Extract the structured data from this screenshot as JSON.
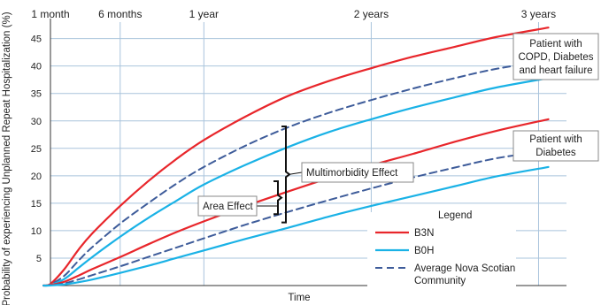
{
  "chart_data": {
    "type": "line",
    "title": "",
    "xlabel": "Time",
    "ylabel": "Probability of experiencing Unplanned Repeat Hospitalization (%)",
    "xunit": "months",
    "xlim": [
      1,
      38
    ],
    "ylim": [
      0,
      48
    ],
    "yticks": [
      5,
      10,
      15,
      20,
      25,
      30,
      35,
      40,
      45
    ],
    "grid": true,
    "time_ticks": [
      {
        "label": "1 month",
        "x": 1
      },
      {
        "label": "6 months",
        "x": 6
      },
      {
        "label": "1 year",
        "x": 12
      },
      {
        "label": "2 years",
        "x": 24
      },
      {
        "label": "3 years",
        "x": 36
      }
    ],
    "colors": {
      "B3N": "#e8262b",
      "B0H": "#1ab2e6",
      "Average": "#3e5c9a",
      "grid": "#a9c4dc"
    },
    "series": [
      {
        "name": "B3N",
        "group": "COPD, Diabetes and heart failure",
        "style": "solid",
        "color": "#e8262b",
        "x": [
          0.5,
          1,
          2,
          3,
          4,
          6,
          8,
          10,
          12,
          15,
          18,
          21,
          24,
          27,
          30,
          33,
          36.7
        ],
        "y": [
          0,
          0.3,
          3,
          6.5,
          9.5,
          14.5,
          19,
          23,
          26.5,
          30.8,
          34.5,
          37.3,
          39.6,
          41.7,
          43.5,
          45.3,
          47
        ]
      },
      {
        "name": "Average Nova Scotian Community",
        "group": "COPD, Diabetes and heart failure",
        "style": "dashed",
        "color": "#3e5c9a",
        "x": [
          0.5,
          1,
          2,
          3,
          4,
          6,
          8,
          10,
          12,
          15,
          18,
          21,
          24,
          27,
          30,
          33,
          36.7
        ],
        "y": [
          0,
          0.2,
          1.8,
          4.5,
          7,
          11.3,
          15,
          18.5,
          21.6,
          25.5,
          28.8,
          31.5,
          33.8,
          35.9,
          37.8,
          39.5,
          41
        ]
      },
      {
        "name": "B0H",
        "group": "COPD, Diabetes and heart failure",
        "style": "solid",
        "color": "#1ab2e6",
        "x": [
          0.5,
          1,
          2,
          3,
          4,
          6,
          8,
          10,
          12,
          15,
          18,
          21,
          24,
          27,
          30,
          33,
          36.7
        ],
        "y": [
          0,
          0.1,
          1.2,
          3.2,
          5.2,
          8.9,
          12.3,
          15.4,
          18.4,
          22,
          25.2,
          28,
          30.3,
          32.4,
          34.3,
          36.1,
          37.8
        ]
      },
      {
        "name": "B3N",
        "group": "Diabetes",
        "style": "solid",
        "color": "#e8262b",
        "x": [
          0.5,
          1,
          2,
          3,
          4,
          6,
          8,
          10,
          12,
          15,
          18,
          21,
          24,
          27,
          30,
          33,
          36.7
        ],
        "y": [
          0,
          0.1,
          0.7,
          1.8,
          3,
          5.2,
          7.5,
          9.7,
          11.7,
          14.5,
          17.1,
          19.6,
          21.9,
          24,
          26.2,
          28.2,
          30.3
        ]
      },
      {
        "name": "Average Nova Scotian Community",
        "group": "Diabetes",
        "style": "dashed",
        "color": "#3e5c9a",
        "x": [
          0.5,
          1,
          2,
          3,
          4,
          6,
          8,
          10,
          12,
          15,
          18,
          21,
          24,
          27,
          30,
          33,
          36.7
        ],
        "y": [
          0,
          0.05,
          0.4,
          1.1,
          1.9,
          3.5,
          5.2,
          6.9,
          8.6,
          11.1,
          13.4,
          15.6,
          17.7,
          19.7,
          21.5,
          23.2,
          24.6
        ]
      },
      {
        "name": "B0H",
        "group": "Diabetes",
        "style": "solid",
        "color": "#1ab2e6",
        "x": [
          0.5,
          1,
          2,
          3,
          4,
          6,
          8,
          10,
          12,
          15,
          18,
          21,
          24,
          27,
          30,
          33,
          36.7
        ],
        "y": [
          0,
          0.02,
          0.2,
          0.6,
          1.1,
          2.3,
          3.6,
          5,
          6.4,
          8.5,
          10.5,
          12.6,
          14.5,
          16.3,
          18.1,
          19.9,
          21.6
        ]
      }
    ],
    "annotations": {
      "group_high": [
        "Patient with",
        "COPD, Diabetes",
        "and heart failure"
      ],
      "group_low": [
        "Patient with",
        "Diabetes"
      ],
      "multimorbidity": "Multimorbidity Effect",
      "area": "Area Effect",
      "multimorbidity_bracket": [
        11.5,
        29
      ],
      "area_bracket": [
        13,
        19
      ]
    },
    "legend": {
      "position": "bottom-right",
      "title": "Legend",
      "entries": [
        {
          "label": "B3N",
          "style": "solid",
          "color": "#e8262b"
        },
        {
          "label": "B0H",
          "style": "solid",
          "color": "#1ab2e6"
        },
        {
          "label": "Average Nova Scotian",
          "label2": "Community",
          "style": "dashed",
          "color": "#3e5c9a"
        }
      ]
    }
  }
}
